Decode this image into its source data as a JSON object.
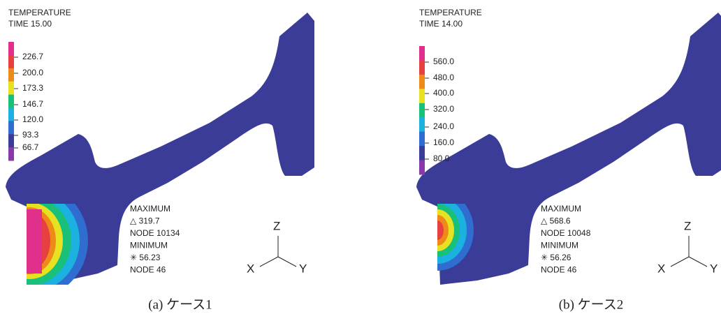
{
  "panels": [
    {
      "title": "TEMPERATURE",
      "time": "TIME 15.00",
      "legend": [
        "226.7",
        "200.0",
        "173.3",
        "146.7",
        "120.0",
        "93.3",
        "66.7"
      ],
      "extrema": [
        "MAXIMUM",
        "△ 319.7",
        "NODE 10134",
        "MINIMUM",
        "✳ 56.23",
        "NODE 46"
      ],
      "axes": [
        "Z",
        "X",
        "Y"
      ],
      "caption": "(a) ケース1"
    },
    {
      "title": "TEMPERATURE",
      "time": "TIME 14.00",
      "legend": [
        "560.0",
        "480.0",
        "400.0",
        "320.0",
        "240.0",
        "160.0",
        "80.0"
      ],
      "extrema": [
        "MAXIMUM",
        "△ 568.6",
        "NODE 10048",
        "MINIMUM",
        "✳ 56.26",
        "NODE 46"
      ],
      "axes": [
        "Z",
        "X",
        "Y"
      ],
      "caption": "(b) ケース2"
    }
  ]
}
